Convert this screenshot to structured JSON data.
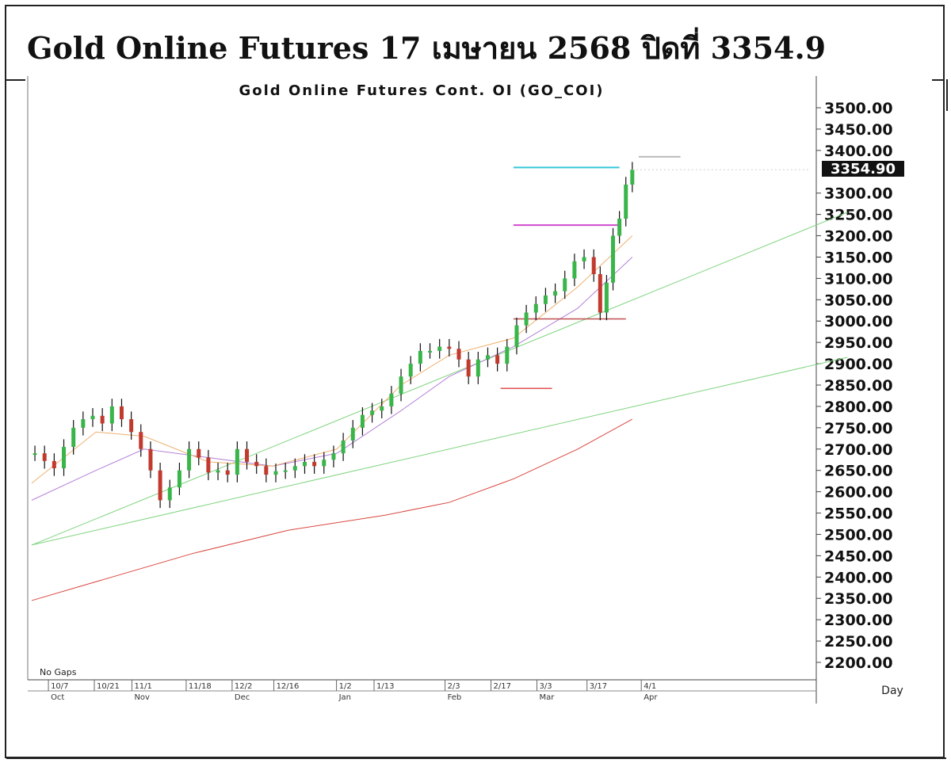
{
  "page": {
    "title": "Gold Online Futures 17 เมษายน 2568 ปิดที่ 3354.9"
  },
  "chart_data": {
    "type": "line",
    "title": "Gold Online Futures Cont. OI (GO_COI)",
    "note": "No Gaps",
    "period_label": "Day",
    "last_price_label": "3354.90",
    "last_price": 3354.9,
    "ylim": [
      2200,
      3500
    ],
    "y_ticks": [
      "3500.00",
      "3450.00",
      "3400.00",
      "3300.00",
      "3250.00",
      "3200.00",
      "3150.00",
      "3100.00",
      "3050.00",
      "3000.00",
      "2950.00",
      "2900.00",
      "2850.00",
      "2800.00",
      "2750.00",
      "2700.00",
      "2650.00",
      "2600.00",
      "2550.00",
      "2500.00",
      "2450.00",
      "2400.00",
      "2350.00",
      "2300.00",
      "2250.00",
      "2200.00"
    ],
    "x_ticks": [
      "10/7",
      "10/21",
      "11/1",
      "11/18",
      "12/2",
      "12/16",
      "1/2",
      "1/13",
      "2/3",
      "2/17",
      "3/3",
      "3/17",
      "4/1"
    ],
    "x_months": [
      "Oct",
      "Nov",
      "Dec",
      "Jan",
      "Feb",
      "Mar",
      "Apr"
    ],
    "price_series": [
      {
        "d": 1,
        "c": 2690
      },
      {
        "d": 4,
        "c": 2672
      },
      {
        "d": 7,
        "c": 2655
      },
      {
        "d": 10,
        "c": 2705
      },
      {
        "d": 13,
        "c": 2750
      },
      {
        "d": 16,
        "c": 2770
      },
      {
        "d": 19,
        "c": 2778
      },
      {
        "d": 22,
        "c": 2760
      },
      {
        "d": 25,
        "c": 2800
      },
      {
        "d": 28,
        "c": 2770
      },
      {
        "d": 31,
        "c": 2740
      },
      {
        "d": 34,
        "c": 2700
      },
      {
        "d": 37,
        "c": 2650
      },
      {
        "d": 40,
        "c": 2580
      },
      {
        "d": 43,
        "c": 2610
      },
      {
        "d": 46,
        "c": 2650
      },
      {
        "d": 49,
        "c": 2700
      },
      {
        "d": 52,
        "c": 2680
      },
      {
        "d": 55,
        "c": 2645
      },
      {
        "d": 58,
        "c": 2650
      },
      {
        "d": 61,
        "c": 2640
      },
      {
        "d": 64,
        "c": 2700
      },
      {
        "d": 67,
        "c": 2670
      },
      {
        "d": 70,
        "c": 2660
      },
      {
        "d": 73,
        "c": 2640
      },
      {
        "d": 76,
        "c": 2648
      },
      {
        "d": 79,
        "c": 2650
      },
      {
        "d": 82,
        "c": 2660
      },
      {
        "d": 85,
        "c": 2670
      },
      {
        "d": 88,
        "c": 2660
      },
      {
        "d": 91,
        "c": 2675
      },
      {
        "d": 94,
        "c": 2690
      },
      {
        "d": 97,
        "c": 2720
      },
      {
        "d": 100,
        "c": 2750
      },
      {
        "d": 103,
        "c": 2780
      },
      {
        "d": 106,
        "c": 2790
      },
      {
        "d": 109,
        "c": 2800
      },
      {
        "d": 112,
        "c": 2830
      },
      {
        "d": 115,
        "c": 2870
      },
      {
        "d": 118,
        "c": 2900
      },
      {
        "d": 121,
        "c": 2930
      },
      {
        "d": 124,
        "c": 2930
      },
      {
        "d": 127,
        "c": 2940
      },
      {
        "d": 130,
        "c": 2935
      },
      {
        "d": 133,
        "c": 2910
      },
      {
        "d": 136,
        "c": 2870
      },
      {
        "d": 139,
        "c": 2910
      },
      {
        "d": 142,
        "c": 2920
      },
      {
        "d": 145,
        "c": 2900
      },
      {
        "d": 148,
        "c": 2940
      },
      {
        "d": 151,
        "c": 2990
      },
      {
        "d": 154,
        "c": 3020
      },
      {
        "d": 157,
        "c": 3040
      },
      {
        "d": 160,
        "c": 3060
      },
      {
        "d": 163,
        "c": 3070
      },
      {
        "d": 166,
        "c": 3100
      },
      {
        "d": 169,
        "c": 3140
      },
      {
        "d": 172,
        "c": 3150
      },
      {
        "d": 175,
        "c": 3110
      },
      {
        "d": 177,
        "c": 3020
      },
      {
        "d": 179,
        "c": 3090
      },
      {
        "d": 181,
        "c": 3200
      },
      {
        "d": 183,
        "c": 3240
      },
      {
        "d": 185,
        "c": 3320
      },
      {
        "d": 187,
        "c": 3354.9
      }
    ]
  }
}
